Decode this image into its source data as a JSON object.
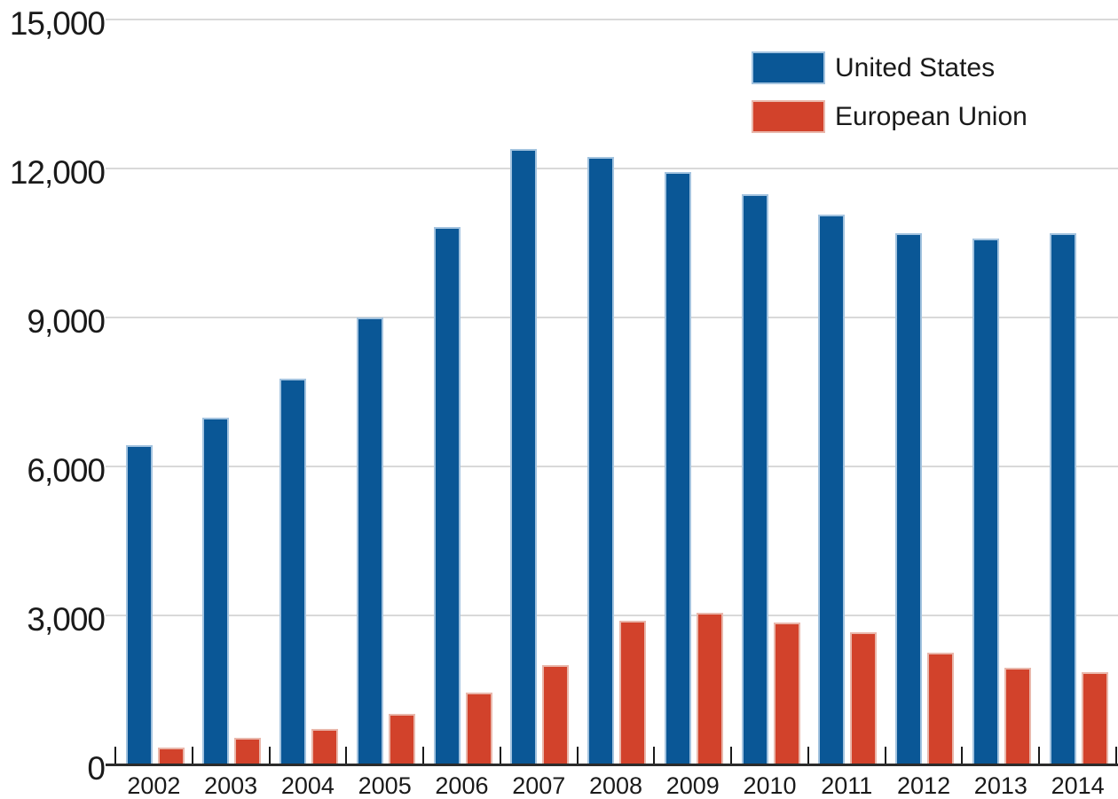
{
  "chart_data": {
    "type": "bar",
    "title": "",
    "xlabel": "",
    "ylabel": "",
    "categories": [
      "2002",
      "2003",
      "2004",
      "2005",
      "2006",
      "2007",
      "2008",
      "2009",
      "2010",
      "2011",
      "2012",
      "2013",
      "2014"
    ],
    "series": [
      {
        "name": "United States",
        "color": "#0a5796",
        "stroke": "#a3c3df",
        "values": [
          6430,
          6980,
          7770,
          9000,
          10820,
          12400,
          12230,
          11930,
          11480,
          11070,
          10700,
          10590,
          10700
        ]
      },
      {
        "name": "European Union",
        "color": "#d2422b",
        "stroke": "#e9b7ab",
        "values": [
          340,
          540,
          710,
          1020,
          1450,
          2000,
          2890,
          3050,
          2860,
          2660,
          2250,
          1950,
          1860
        ]
      }
    ],
    "ylim": [
      0,
      15000
    ],
    "yticks": [
      0,
      3000,
      6000,
      9000,
      12000,
      15000
    ],
    "grid": true,
    "legend_position": "top-right"
  },
  "colors": {
    "background": "#ffffff",
    "gridline": "#d9d9d9",
    "axis": "#2b2b2b",
    "tick": "#1a1a1a",
    "text": "#1a1a1a"
  }
}
